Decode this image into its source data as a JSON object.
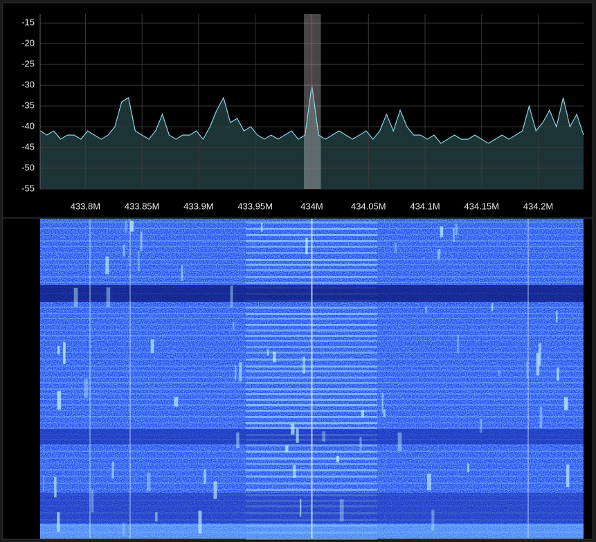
{
  "chart_data": {
    "type": "line",
    "x": [
      433.76,
      433.766,
      433.772,
      433.778,
      433.784,
      433.79,
      433.796,
      433.802,
      433.808,
      433.814,
      433.82,
      433.826,
      433.832,
      433.838,
      433.844,
      433.85,
      433.856,
      433.862,
      433.868,
      433.874,
      433.88,
      433.886,
      433.892,
      433.898,
      433.904,
      433.91,
      433.916,
      433.922,
      433.928,
      433.934,
      433.94,
      433.946,
      433.952,
      433.958,
      433.964,
      433.97,
      433.976,
      433.982,
      433.988,
      433.994,
      434,
      434.006,
      434.012,
      434.018,
      434.024,
      434.03,
      434.036,
      434.042,
      434.048,
      434.054,
      434.06,
      434.066,
      434.072,
      434.078,
      434.084,
      434.09,
      434.096,
      434.102,
      434.108,
      434.114,
      434.12,
      434.126,
      434.132,
      434.138,
      434.144,
      434.15,
      434.156,
      434.162,
      434.168,
      434.174,
      434.18,
      434.186,
      434.192,
      434.198,
      434.204,
      434.21,
      434.216,
      434.222,
      434.228,
      434.234,
      434.24
    ],
    "values": [
      -41,
      -42,
      -41,
      -43,
      -42,
      -42,
      -43,
      -41,
      -42,
      -43,
      -42,
      -40,
      -34,
      -33,
      -41,
      -42,
      -43,
      -41,
      -37,
      -42,
      -43,
      -42,
      -42,
      -41,
      -43,
      -40,
      -36,
      -33,
      -39,
      -38,
      -41,
      -40,
      -42,
      -43,
      -42,
      -43,
      -42,
      -41,
      -43,
      -42,
      -30,
      -42,
      -43,
      -42,
      -41,
      -42,
      -43,
      -42,
      -41,
      -43,
      -41,
      -37,
      -41,
      -36,
      -40,
      -42,
      -42,
      -43,
      -42,
      -44,
      -43,
      -42,
      -43,
      -43,
      -42,
      -43,
      -44,
      -43,
      -42,
      -43,
      -42,
      -41,
      -35,
      -41,
      -39,
      -36,
      -40,
      -33,
      -40,
      -37,
      -42
    ],
    "color": "#8ad8e8",
    "fill_color": "#1d3436",
    "xlim": [
      433.76,
      434.24
    ],
    "xticks": [
      {
        "value": 433.8,
        "label": "433.8M"
      },
      {
        "value": 433.85,
        "label": "433.85M"
      },
      {
        "value": 433.9,
        "label": "433.9M"
      },
      {
        "value": 433.95,
        "label": "433.95M"
      },
      {
        "value": 434,
        "label": "434M"
      },
      {
        "value": 434.05,
        "label": "434.05M"
      },
      {
        "value": 434.1,
        "label": "434.1M"
      },
      {
        "value": 434.15,
        "label": "434.15M"
      },
      {
        "value": 434.2,
        "label": "434.2M"
      }
    ],
    "ylim": [
      -55,
      -12.8
    ],
    "yticks": [
      -15,
      -20,
      -25,
      -30,
      -35,
      -40,
      -45,
      -50,
      -55
    ],
    "grid": true,
    "marker_x": 434,
    "marker_band": [
      433.993,
      434.008
    ]
  }
}
